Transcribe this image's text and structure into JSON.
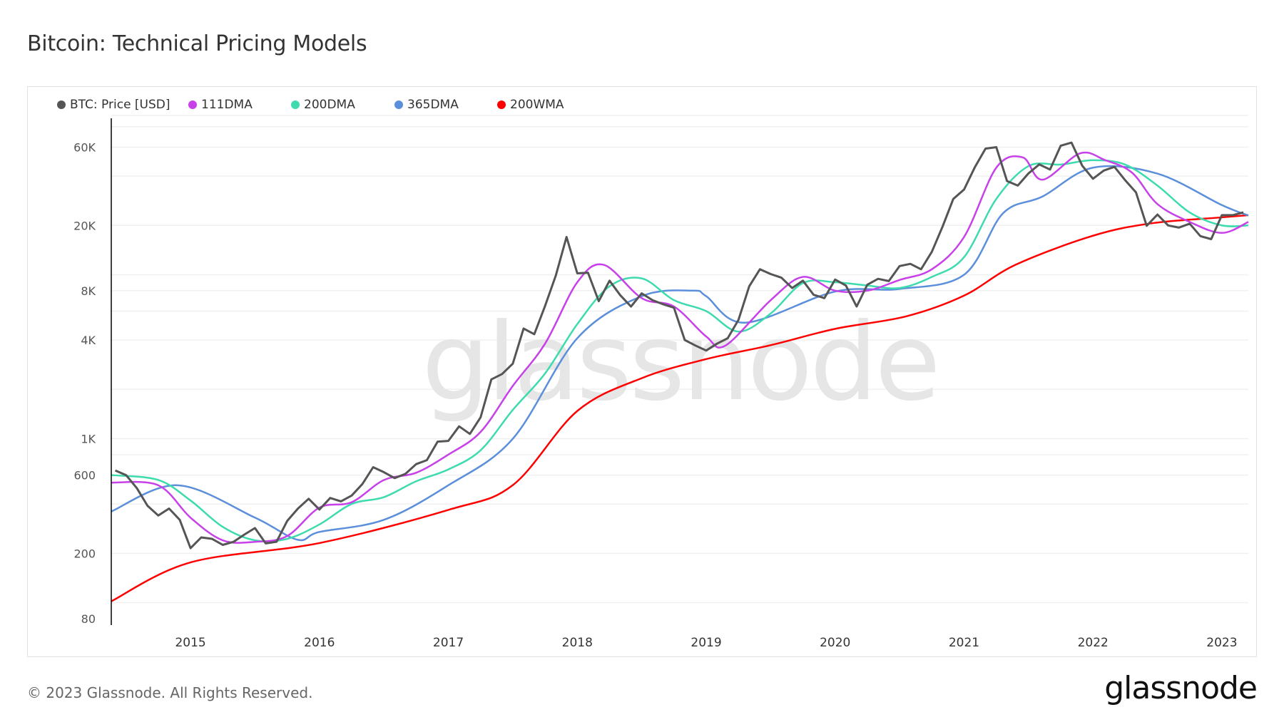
{
  "title": "Bitcoin: Technical Pricing Models",
  "footer": "© 2023 Glassnode. All Rights Reserved.",
  "logo": "glassnode",
  "watermark": "glassnode",
  "chart_data": {
    "type": "line",
    "title": "Bitcoin: Technical Pricing Models",
    "xlabel": "",
    "ylabel": "",
    "y_scale": "log",
    "xlim": [
      "2014-05-20",
      "2023-03-15"
    ],
    "ylim": [
      73,
      90000
    ],
    "grid": "horizontal",
    "legend_position": "top-left",
    "x_ticks": [
      "2015",
      "2016",
      "2017",
      "2018",
      "2019",
      "2020",
      "2021",
      "2022",
      "2023"
    ],
    "y_ticks": [
      {
        "value": 60000,
        "label": "60K"
      },
      {
        "value": 20000,
        "label": "20K"
      },
      {
        "value": 8000,
        "label": "8K"
      },
      {
        "value": 4000,
        "label": "4K"
      },
      {
        "value": 1000,
        "label": "1K"
      },
      {
        "value": 600,
        "label": "600"
      },
      {
        "value": 200,
        "label": "200"
      },
      {
        "value": 80,
        "label": "80"
      }
    ],
    "y_gridlines": [
      100,
      200,
      400,
      600,
      800,
      1000,
      2000,
      4000,
      6000,
      8000,
      10000,
      20000,
      40000,
      60000,
      80000
    ],
    "series": [
      {
        "name": "BTC: Price [USD]",
        "color": "#555555",
        "x": [
          "2014-06",
          "2014-07",
          "2014-08",
          "2014-09",
          "2014-10",
          "2014-11",
          "2014-12",
          "2015-01",
          "2015-02",
          "2015-03",
          "2015-04",
          "2015-05",
          "2015-06",
          "2015-07",
          "2015-08",
          "2015-09",
          "2015-10",
          "2015-11",
          "2015-12",
          "2016-01",
          "2016-02",
          "2016-03",
          "2016-04",
          "2016-05",
          "2016-06",
          "2016-07",
          "2016-08",
          "2016-09",
          "2016-10",
          "2016-11",
          "2016-12",
          "2017-01",
          "2017-02",
          "2017-03",
          "2017-04",
          "2017-05",
          "2017-06",
          "2017-07",
          "2017-08",
          "2017-09",
          "2017-10",
          "2017-11",
          "2017-12",
          "2018-01",
          "2018-02",
          "2018-03",
          "2018-04",
          "2018-05",
          "2018-06",
          "2018-07",
          "2018-08",
          "2018-09",
          "2018-10",
          "2018-11",
          "2018-12",
          "2019-01",
          "2019-02",
          "2019-03",
          "2019-04",
          "2019-05",
          "2019-06",
          "2019-07",
          "2019-08",
          "2019-09",
          "2019-10",
          "2019-11",
          "2019-12",
          "2020-01",
          "2020-02",
          "2020-03",
          "2020-04",
          "2020-05",
          "2020-06",
          "2020-07",
          "2020-08",
          "2020-09",
          "2020-10",
          "2020-11",
          "2020-12",
          "2021-01",
          "2021-02",
          "2021-03",
          "2021-04",
          "2021-05",
          "2021-06",
          "2021-07",
          "2021-08",
          "2021-09",
          "2021-10",
          "2021-11",
          "2021-12",
          "2022-01",
          "2022-02",
          "2022-03",
          "2022-04",
          "2022-05",
          "2022-06",
          "2022-07",
          "2022-08",
          "2022-09",
          "2022-10",
          "2022-11",
          "2022-12",
          "2023-01",
          "2023-02",
          "2023-03"
        ],
        "values": [
          640,
          600,
          500,
          390,
          340,
          375,
          320,
          215,
          250,
          245,
          225,
          235,
          260,
          285,
          230,
          235,
          315,
          375,
          430,
          370,
          435,
          415,
          450,
          530,
          670,
          625,
          575,
          610,
          700,
          740,
          960,
          970,
          1190,
          1070,
          1350,
          2300,
          2480,
          2870,
          4700,
          4340,
          6450,
          9900,
          17000,
          10200,
          10300,
          6900,
          9200,
          7500,
          6400,
          7700,
          7000,
          6600,
          6300,
          4000,
          3700,
          3450,
          3800,
          4100,
          5300,
          8500,
          10800,
          10100,
          9600,
          8300,
          9200,
          7550,
          7200,
          9350,
          8600,
          6400,
          8700,
          9450,
          9150,
          11300,
          11650,
          10800,
          13800,
          19700,
          29000,
          33100,
          45200,
          58800,
          60000,
          37300,
          35000,
          41500,
          47100,
          43800,
          61300,
          64000,
          46300,
          38500,
          43200,
          45500,
          37700,
          31800,
          19900,
          23300,
          20000,
          19400,
          20500,
          17200,
          16500,
          23100,
          23100,
          24000
        ]
      },
      {
        "name": "111DMA",
        "color": "#c840e9",
        "x": [
          "2014-05-20",
          "2014-10-01",
          "2015-01-01",
          "2015-04-01",
          "2015-07-01",
          "2015-10-01",
          "2016-01-01",
          "2016-04-01",
          "2016-07-01",
          "2016-10-01",
          "2017-01-01",
          "2017-04-01",
          "2017-07-01",
          "2017-10-01",
          "2018-01-01",
          "2018-03-15",
          "2018-07-01",
          "2018-10-01",
          "2019-01-01",
          "2019-02-25",
          "2019-07-01",
          "2019-10-01",
          "2020-01-01",
          "2020-04-01",
          "2020-07-01",
          "2020-10-01",
          "2021-01-01",
          "2021-04-01",
          "2021-06-15",
          "2021-08-10",
          "2021-11-25",
          "2022-02-05",
          "2022-04-20",
          "2022-07-01",
          "2022-10-01",
          "2023-01-01",
          "2023-03-15"
        ],
        "values": [
          540,
          520,
          330,
          240,
          235,
          255,
          380,
          410,
          560,
          620,
          800,
          1100,
          2100,
          3800,
          9000,
          11500,
          7200,
          6400,
          4200,
          3700,
          7000,
          9700,
          8000,
          8000,
          9300,
          10800,
          17000,
          45000,
          52000,
          38000,
          55000,
          50000,
          42000,
          27000,
          21000,
          18000,
          21000
        ]
      },
      {
        "name": "200DMA",
        "color": "#3ddbad",
        "x": [
          "2014-05-20",
          "2014-10-01",
          "2015-01-01",
          "2015-04-01",
          "2015-07-01",
          "2015-10-01",
          "2016-01-01",
          "2016-04-01",
          "2016-07-01",
          "2016-10-01",
          "2017-01-01",
          "2017-04-01",
          "2017-07-01",
          "2017-10-01",
          "2018-01-01",
          "2018-04-01",
          "2018-07-01",
          "2018-10-01",
          "2019-01-01",
          "2019-04-01",
          "2019-07-01",
          "2019-10-01",
          "2020-01-01",
          "2020-04-01",
          "2020-07-01",
          "2020-10-01",
          "2021-01-01",
          "2021-04-01",
          "2021-07-01",
          "2021-10-01",
          "2022-01-01",
          "2022-04-01",
          "2022-07-01",
          "2022-10-01",
          "2023-01-01",
          "2023-03-15"
        ],
        "values": [
          600,
          560,
          420,
          290,
          240,
          245,
          300,
          400,
          440,
          550,
          650,
          850,
          1500,
          2500,
          5000,
          8500,
          9500,
          7000,
          6000,
          4500,
          5800,
          8900,
          9000,
          8600,
          8300,
          9700,
          12800,
          29000,
          46000,
          47000,
          50000,
          47000,
          35000,
          24000,
          20000,
          20000
        ]
      },
      {
        "name": "365DMA",
        "color": "#5b8fdb",
        "x": [
          "2014-05-20",
          "2014-11-25",
          "2015-07-01",
          "2015-10-30",
          "2016-01-01",
          "2016-07-01",
          "2017-01-01",
          "2017-07-01",
          "2018-01-01",
          "2018-07-01",
          "2018-11-25",
          "2019-01-01",
          "2019-04-20",
          "2020-01-01",
          "2020-07-01",
          "2021-01-01",
          "2021-04-20",
          "2021-08-10",
          "2022-01-01",
          "2022-07-01",
          "2023-01-01",
          "2023-03-15"
        ],
        "values": [
          360,
          520,
          330,
          242,
          270,
          320,
          520,
          1000,
          4100,
          7400,
          8000,
          7400,
          5100,
          7900,
          8200,
          10000,
          23700,
          30000,
          45000,
          41400,
          26600,
          23000
        ]
      },
      {
        "name": "200WMA",
        "color": "#ff0000",
        "x": [
          "2014-05-20",
          "2015-01-01",
          "2016-01-01",
          "2017-01-01",
          "2017-07-01",
          "2018-01-01",
          "2018-07-01",
          "2019-01-01",
          "2019-07-01",
          "2020-01-01",
          "2020-07-20",
          "2021-01-01",
          "2021-05-25",
          "2022-01-01",
          "2022-06-15",
          "2023-01-01",
          "2023-03-15"
        ],
        "values": [
          102,
          176,
          231,
          368,
          521,
          1476,
          2340,
          3060,
          3720,
          4680,
          5580,
          7460,
          11500,
          17300,
          20600,
          22400,
          23100
        ]
      }
    ]
  }
}
